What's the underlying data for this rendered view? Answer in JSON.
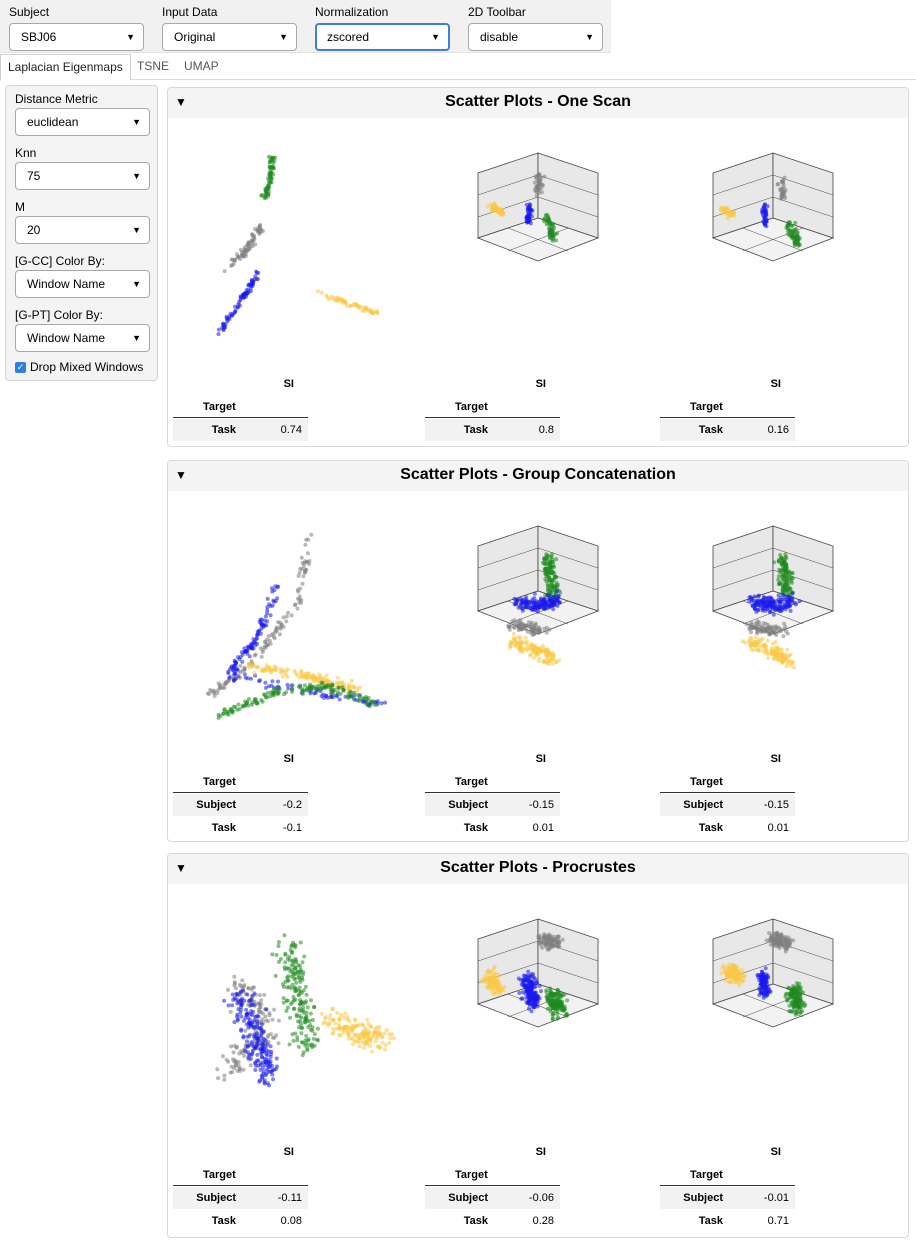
{
  "controls": {
    "subject": {
      "label": "Subject",
      "value": "SBJ06"
    },
    "input_data": {
      "label": "Input Data",
      "value": "Original"
    },
    "normalization": {
      "label": "Normalization",
      "value": "zscored"
    },
    "toolbar_2d": {
      "label": "2D Toolbar",
      "value": "disable"
    }
  },
  "tabs": [
    "Laplacian Eigenmaps",
    "TSNE",
    "UMAP"
  ],
  "sidebar": {
    "distance_metric": {
      "label": "Distance Metric",
      "value": "euclidean"
    },
    "knn": {
      "label": "Knn",
      "value": "75"
    },
    "m": {
      "label": "M",
      "value": "20"
    },
    "gcc_color": {
      "label": "[G-CC] Color By:",
      "value": "Window Name"
    },
    "gpt_color": {
      "label": "[G-PT] Color By:",
      "value": "Window Name"
    },
    "drop_mixed": {
      "label": "Drop Mixed Windows",
      "checked": true
    }
  },
  "colors": {
    "grey": "#808080",
    "blue": "#1a1aee",
    "green": "#1f8a1f",
    "yellow": "#f9c846"
  },
  "panels": [
    {
      "title": "Scatter Plots - One Scan",
      "stats": [
        {
          "si_label": "SI",
          "header": "Target",
          "rows": [
            {
              "label": "Task",
              "value": "0.74"
            }
          ]
        },
        {
          "si_label": "SI",
          "header": "Target",
          "rows": [
            {
              "label": "Task",
              "value": "0.8"
            }
          ]
        },
        {
          "si_label": "SI",
          "header": "Target",
          "rows": [
            {
              "label": "Task",
              "value": "0.16"
            }
          ]
        }
      ]
    },
    {
      "title": "Scatter Plots - Group Concatenation",
      "stats": [
        {
          "si_label": "SI",
          "header": "Target",
          "rows": [
            {
              "label": "Subject",
              "value": "-0.2"
            },
            {
              "label": "Task",
              "value": "-0.1"
            }
          ]
        },
        {
          "si_label": "SI",
          "header": "Target",
          "rows": [
            {
              "label": "Subject",
              "value": "-0.15"
            },
            {
              "label": "Task",
              "value": "0.01"
            }
          ]
        },
        {
          "si_label": "SI",
          "header": "Target",
          "rows": [
            {
              "label": "Subject",
              "value": "-0.15"
            },
            {
              "label": "Task",
              "value": "0.01"
            }
          ]
        }
      ]
    },
    {
      "title": "Scatter Plots - Procrustes",
      "stats": [
        {
          "si_label": "SI",
          "header": "Target",
          "rows": [
            {
              "label": "Subject",
              "value": "-0.11"
            },
            {
              "label": "Task",
              "value": "0.08"
            }
          ]
        },
        {
          "si_label": "SI",
          "header": "Target",
          "rows": [
            {
              "label": "Subject",
              "value": "-0.06"
            },
            {
              "label": "Task",
              "value": "0.28"
            }
          ]
        },
        {
          "si_label": "SI",
          "header": "Target",
          "rows": [
            {
              "label": "Subject",
              "value": "-0.01"
            },
            {
              "label": "Task",
              "value": "0.71"
            }
          ]
        }
      ]
    }
  ]
}
